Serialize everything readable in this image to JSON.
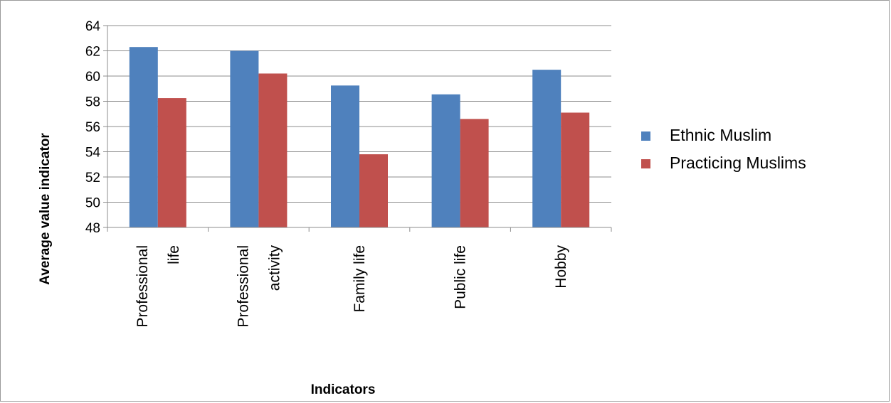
{
  "chart_data": {
    "type": "bar",
    "categories": [
      [
        "Professional",
        "life"
      ],
      [
        "Professional",
        "activity"
      ],
      [
        "Family life"
      ],
      [
        "Public life"
      ],
      [
        "Hobby"
      ]
    ],
    "series": [
      {
        "name": "Ethnic Muslim",
        "color": "#4f81bd",
        "values": [
          62.3,
          62.0,
          59.25,
          58.55,
          60.5
        ]
      },
      {
        "name": "Practicing Muslims",
        "color": "#c0504d",
        "values": [
          58.25,
          60.2,
          53.8,
          56.6,
          57.1
        ]
      }
    ],
    "xlabel": "Indicators",
    "ylabel": "Average value indicator",
    "ylim": [
      48,
      64
    ],
    "yticks": [
      48,
      50,
      52,
      54,
      56,
      58,
      60,
      62,
      64
    ],
    "grid": true,
    "legend_position": "right"
  }
}
